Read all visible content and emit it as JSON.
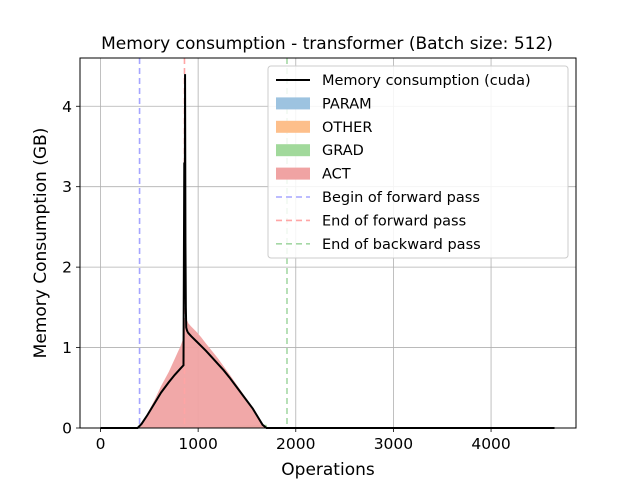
{
  "chart_data": {
    "type": "area",
    "title": "Memory consumption - transformer (Batch size: 512)",
    "xlabel": "Operations",
    "ylabel": "Memory Consumption (GB)",
    "xlim": [
      -210,
      4870
    ],
    "ylim": [
      0,
      4.6
    ],
    "xticks": [
      0,
      1000,
      2000,
      3000,
      4000
    ],
    "xtick_labels": [
      "0",
      "1000",
      "2000",
      "3000",
      "4000"
    ],
    "yticks": [
      0,
      1,
      2,
      3,
      4
    ],
    "ytick_labels": [
      "0",
      "1",
      "2",
      "3",
      "4"
    ],
    "grid": true,
    "legend_position": "top-right",
    "series": [
      {
        "name": "Memory consumption (cuda)",
        "kind": "line",
        "color": "#000000",
        "x": [
          0,
          380,
          420,
          480,
          550,
          620,
          700,
          760,
          820,
          850,
          858,
          862,
          866,
          870,
          874,
          878,
          884,
          890,
          900,
          930,
          980,
          1030,
          1080,
          1140,
          1200,
          1260,
          1320,
          1400,
          1480,
          1560,
          1620,
          1660,
          1700,
          4650
        ],
        "y": [
          0,
          0,
          0.05,
          0.16,
          0.3,
          0.44,
          0.57,
          0.66,
          0.74,
          0.78,
          3.3,
          1.6,
          4.4,
          2.3,
          1.5,
          1.25,
          1.22,
          1.2,
          1.18,
          1.14,
          1.08,
          1.02,
          0.96,
          0.88,
          0.8,
          0.72,
          0.63,
          0.5,
          0.37,
          0.24,
          0.12,
          0.04,
          0,
          0
        ]
      },
      {
        "name": "PARAM",
        "kind": "area",
        "color": "#9dc3e0",
        "x": [
          0,
          4650
        ],
        "y": [
          0.004,
          0.004
        ]
      },
      {
        "name": "OTHER",
        "kind": "area",
        "color": "#fdbf8b",
        "x": [
          0,
          4650
        ],
        "y": [
          0.002,
          0.002
        ]
      },
      {
        "name": "GRAD",
        "kind": "area",
        "color": "#a1d99b",
        "x": [
          880,
          1000,
          1100,
          1200,
          1300,
          1400,
          1500,
          1600,
          1700,
          1710
        ],
        "y": [
          0.0,
          0.006,
          0.012,
          0.018,
          0.024,
          0.03,
          0.034,
          0.038,
          0.04,
          0.0
        ]
      },
      {
        "name": "ACT",
        "kind": "area",
        "color": "#f0a3a3",
        "x": [
          380,
          420,
          480,
          550,
          620,
          700,
          760,
          820,
          850,
          858,
          862,
          866,
          870,
          874,
          878,
          884,
          890,
          900,
          930,
          980,
          1030,
          1080,
          1140,
          1200,
          1260,
          1320,
          1400,
          1480,
          1560,
          1620,
          1660,
          1700
        ],
        "y": [
          0,
          0.05,
          0.18,
          0.34,
          0.52,
          0.7,
          0.86,
          1.02,
          1.12,
          1.35,
          1.3,
          1.3,
          1.33,
          1.34,
          1.35,
          1.34,
          1.33,
          1.3,
          1.26,
          1.2,
          1.13,
          1.05,
          0.96,
          0.87,
          0.77,
          0.67,
          0.53,
          0.39,
          0.26,
          0.14,
          0.05,
          0
        ]
      },
      {
        "name": "Begin of forward pass",
        "kind": "vline",
        "x": 400,
        "color": "#a5a5ff",
        "style": "dashed"
      },
      {
        "name": "End of forward pass",
        "kind": "vline",
        "x": 860,
        "color": "#ffa5a5",
        "style": "dashed"
      },
      {
        "name": "End of backward pass",
        "kind": "vline",
        "x": 1910,
        "color": "#a5d8a5",
        "style": "dashed"
      }
    ]
  }
}
